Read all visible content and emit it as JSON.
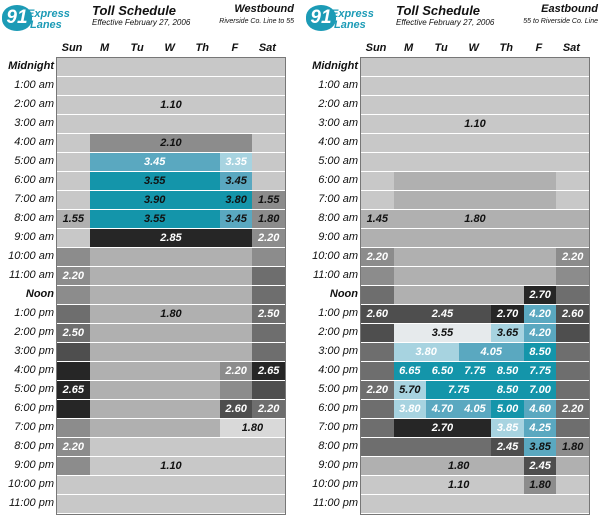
{
  "logo": {
    "badge": "91",
    "line1": "Express",
    "line2": "Lanes"
  },
  "days": [
    "Sun",
    "M",
    "Tu",
    "W",
    "Th",
    "F",
    "Sat"
  ],
  "hours": [
    "Midnight",
    "1:00 am",
    "2:00 am",
    "3:00 am",
    "4:00 am",
    "5:00 am",
    "6:00 am",
    "7:00 am",
    "8:00 am",
    "9:00 am",
    "10:00 am",
    "11:00 am",
    "Noon",
    "1:00 pm",
    "2:00 pm",
    "3:00 pm",
    "4:00 pm",
    "5:00 pm",
    "6:00 pm",
    "7:00 pm",
    "8:00 pm",
    "9:00 pm",
    "10:00 pm",
    "11:00 pm"
  ],
  "panels": [
    {
      "title": "Toll Schedule",
      "effective": "Effective February 27, 2006",
      "direction": "Westbound",
      "route": "Riverside Co. Line to 55",
      "rows": [
        [
          {
            "span": 7,
            "color": "#c8c8c8",
            "text": ""
          }
        ],
        [
          {
            "span": 7,
            "color": "#c8c8c8",
            "text": ""
          }
        ],
        [
          {
            "span": 7,
            "color": "#c8c8c8",
            "text": "1.10"
          }
        ],
        [
          {
            "span": 7,
            "color": "#c8c8c8",
            "text": ""
          }
        ],
        [
          {
            "span": 1,
            "color": "#c8c8c8",
            "text": ""
          },
          {
            "span": 5,
            "color": "#8c8c8c",
            "text": "2.10"
          },
          {
            "span": 1,
            "color": "#c8c8c8",
            "text": ""
          }
        ],
        [
          {
            "span": 1,
            "color": "#c8c8c8",
            "text": ""
          },
          {
            "span": 4,
            "color": "#5aa8c0",
            "text": "3.45",
            "light": true
          },
          {
            "span": 1,
            "color": "#a7d3e0",
            "text": "3.35",
            "light": true
          },
          {
            "span": 1,
            "color": "#c8c8c8",
            "text": ""
          }
        ],
        [
          {
            "span": 1,
            "color": "#c8c8c8",
            "text": ""
          },
          {
            "span": 4,
            "color": "#1495aa",
            "text": "3.55"
          },
          {
            "span": 1,
            "color": "#5aa8c0",
            "text": "3.45"
          },
          {
            "span": 1,
            "color": "#c8c8c8",
            "text": ""
          }
        ],
        [
          {
            "span": 1,
            "color": "#c8c8c8",
            "text": ""
          },
          {
            "span": 4,
            "color": "#1495aa",
            "text": "3.90"
          },
          {
            "span": 1,
            "color": "#1495aa",
            "text": "3.80"
          },
          {
            "span": 1,
            "color": "#8c8c8c",
            "text": "1.55"
          }
        ],
        [
          {
            "span": 1,
            "color": "#b0b0b0",
            "text": "1.55"
          },
          {
            "span": 4,
            "color": "#1495aa",
            "text": "3.55"
          },
          {
            "span": 1,
            "color": "#5aa8c0",
            "text": "3.45"
          },
          {
            "span": 1,
            "color": "#8c8c8c",
            "text": "1.80"
          }
        ],
        [
          {
            "span": 1,
            "color": "#c8c8c8",
            "text": ""
          },
          {
            "span": 5,
            "color": "#262626",
            "text": "2.85",
            "light": true
          },
          {
            "span": 1,
            "color": "#8c8c8c",
            "text": "2.20",
            "light": true
          }
        ],
        [
          {
            "span": 1,
            "color": "#8c8c8c",
            "text": ""
          },
          {
            "span": 5,
            "color": "#b0b0b0",
            "text": ""
          },
          {
            "span": 1,
            "color": "#8c8c8c",
            "text": ""
          }
        ],
        [
          {
            "span": 1,
            "color": "#8c8c8c",
            "text": "2.20",
            "light": true
          },
          {
            "span": 5,
            "color": "#b0b0b0",
            "text": ""
          },
          {
            "span": 1,
            "color": "#6e6e6e",
            "text": ""
          }
        ],
        [
          {
            "span": 1,
            "color": "#8c8c8c",
            "text": ""
          },
          {
            "span": 5,
            "color": "#b0b0b0",
            "text": ""
          },
          {
            "span": 1,
            "color": "#6e6e6e",
            "text": ""
          }
        ],
        [
          {
            "span": 1,
            "color": "#6e6e6e",
            "text": ""
          },
          {
            "span": 5,
            "color": "#b0b0b0",
            "text": "1.80"
          },
          {
            "span": 1,
            "color": "#6e6e6e",
            "text": "2.50",
            "light": true
          }
        ],
        [
          {
            "span": 1,
            "color": "#6e6e6e",
            "text": "2.50",
            "light": true
          },
          {
            "span": 5,
            "color": "#b0b0b0",
            "text": ""
          },
          {
            "span": 1,
            "color": "#6e6e6e",
            "text": ""
          }
        ],
        [
          {
            "span": 1,
            "color": "#4e4e4e",
            "text": ""
          },
          {
            "span": 5,
            "color": "#b0b0b0",
            "text": ""
          },
          {
            "span": 1,
            "color": "#6e6e6e",
            "text": ""
          }
        ],
        [
          {
            "span": 1,
            "color": "#262626",
            "text": ""
          },
          {
            "span": 4,
            "color": "#b0b0b0",
            "text": ""
          },
          {
            "span": 1,
            "color": "#8c8c8c",
            "text": "2.20",
            "light": true
          },
          {
            "span": 1,
            "color": "#262626",
            "text": "2.65",
            "light": true
          }
        ],
        [
          {
            "span": 1,
            "color": "#262626",
            "text": "2.65",
            "light": true
          },
          {
            "span": 4,
            "color": "#b0b0b0",
            "text": ""
          },
          {
            "span": 1,
            "color": "#8c8c8c",
            "text": ""
          },
          {
            "span": 1,
            "color": "#4e4e4e",
            "text": ""
          }
        ],
        [
          {
            "span": 1,
            "color": "#262626",
            "text": ""
          },
          {
            "span": 4,
            "color": "#b0b0b0",
            "text": ""
          },
          {
            "span": 1,
            "color": "#4e4e4e",
            "text": "2.60",
            "light": true
          },
          {
            "span": 1,
            "color": "#6e6e6e",
            "text": "2.20",
            "light": true
          }
        ],
        [
          {
            "span": 1,
            "color": "#8c8c8c",
            "text": ""
          },
          {
            "span": 4,
            "color": "#b0b0b0",
            "text": ""
          },
          {
            "span": 2,
            "color": "#d9d9d9",
            "text": "1.80"
          }
        ],
        [
          {
            "span": 1,
            "color": "#8c8c8c",
            "text": "2.20",
            "light": true
          },
          {
            "span": 6,
            "color": "#c8c8c8",
            "text": ""
          }
        ],
        [
          {
            "span": 1,
            "color": "#8c8c8c",
            "text": ""
          },
          {
            "span": 5,
            "color": "#c8c8c8",
            "text": "1.10"
          },
          {
            "span": 1,
            "color": "#c8c8c8",
            "text": ""
          }
        ],
        [
          {
            "span": 7,
            "color": "#c8c8c8",
            "text": ""
          }
        ],
        [
          {
            "span": 7,
            "color": "#c8c8c8",
            "text": ""
          }
        ]
      ]
    },
    {
      "title": "Toll Schedule",
      "effective": "Effective February 27, 2006",
      "direction": "Eastbound",
      "route": "55 to Riverside Co. Line",
      "rows": [
        [
          {
            "span": 7,
            "color": "#c8c8c8",
            "text": ""
          }
        ],
        [
          {
            "span": 7,
            "color": "#c8c8c8",
            "text": ""
          }
        ],
        [
          {
            "span": 7,
            "color": "#c8c8c8",
            "text": ""
          }
        ],
        [
          {
            "span": 7,
            "color": "#c8c8c8",
            "text": "1.10"
          }
        ],
        [
          {
            "span": 7,
            "color": "#c8c8c8",
            "text": ""
          }
        ],
        [
          {
            "span": 7,
            "color": "#c8c8c8",
            "text": ""
          }
        ],
        [
          {
            "span": 1,
            "color": "#c8c8c8",
            "text": ""
          },
          {
            "span": 5,
            "color": "#b0b0b0",
            "text": ""
          },
          {
            "span": 1,
            "color": "#c8c8c8",
            "text": ""
          }
        ],
        [
          {
            "span": 1,
            "color": "#c8c8c8",
            "text": ""
          },
          {
            "span": 5,
            "color": "#b0b0b0",
            "text": ""
          },
          {
            "span": 1,
            "color": "#c8c8c8",
            "text": ""
          }
        ],
        [
          {
            "span": 1,
            "color": "#b0b0b0",
            "text": "1.45"
          },
          {
            "span": 5,
            "color": "#b0b0b0",
            "text": "1.80"
          },
          {
            "span": 1,
            "color": "#b0b0b0",
            "text": ""
          }
        ],
        [
          {
            "span": 7,
            "color": "#b0b0b0",
            "text": ""
          }
        ],
        [
          {
            "span": 1,
            "color": "#8c8c8c",
            "text": "2.20",
            "light": true
          },
          {
            "span": 5,
            "color": "#b0b0b0",
            "text": ""
          },
          {
            "span": 1,
            "color": "#8c8c8c",
            "text": "2.20",
            "light": true
          }
        ],
        [
          {
            "span": 1,
            "color": "#8c8c8c",
            "text": ""
          },
          {
            "span": 5,
            "color": "#b0b0b0",
            "text": ""
          },
          {
            "span": 1,
            "color": "#8c8c8c",
            "text": ""
          }
        ],
        [
          {
            "span": 1,
            "color": "#6e6e6e",
            "text": ""
          },
          {
            "span": 4,
            "color": "#b0b0b0",
            "text": ""
          },
          {
            "span": 1,
            "color": "#262626",
            "text": "2.70",
            "light": true
          },
          {
            "span": 1,
            "color": "#6e6e6e",
            "text": ""
          }
        ],
        [
          {
            "span": 1,
            "color": "#4e4e4e",
            "text": "2.60",
            "light": true
          },
          {
            "span": 3,
            "color": "#4e4e4e",
            "text": "2.45",
            "light": true
          },
          {
            "span": 1,
            "color": "#262626",
            "text": "2.70",
            "light": true
          },
          {
            "span": 1,
            "color": "#5aa8c0",
            "text": "4.20",
            "light": true
          },
          {
            "span": 1,
            "color": "#4e4e4e",
            "text": "2.60",
            "light": true
          }
        ],
        [
          {
            "span": 1,
            "color": "#4e4e4e",
            "text": ""
          },
          {
            "span": 3,
            "color": "#e6eaec",
            "text": "3.55"
          },
          {
            "span": 1,
            "color": "#a7d3e0",
            "text": "3.65"
          },
          {
            "span": 1,
            "color": "#5aa8c0",
            "text": "4.20",
            "light": true
          },
          {
            "span": 1,
            "color": "#4e4e4e",
            "text": ""
          }
        ],
        [
          {
            "span": 1,
            "color": "#6e6e6e",
            "text": ""
          },
          {
            "span": 2,
            "color": "#a7d3e0",
            "text": "3.80",
            "light": true
          },
          {
            "span": 2,
            "color": "#5aa8c0",
            "text": "4.05",
            "light": true
          },
          {
            "span": 1,
            "color": "#1495aa",
            "text": "8.50",
            "light": true
          },
          {
            "span": 1,
            "color": "#6e6e6e",
            "text": ""
          }
        ],
        [
          {
            "span": 1,
            "color": "#6e6e6e",
            "text": ""
          },
          {
            "span": 1,
            "color": "#1495aa",
            "text": "6.65",
            "light": true
          },
          {
            "span": 1,
            "color": "#1495aa",
            "text": "6.50",
            "light": true
          },
          {
            "span": 1,
            "color": "#1495aa",
            "text": "7.75",
            "light": true
          },
          {
            "span": 1,
            "color": "#1495aa",
            "text": "8.50",
            "light": true
          },
          {
            "span": 1,
            "color": "#1495aa",
            "text": "7.75",
            "light": true
          },
          {
            "span": 1,
            "color": "#6e6e6e",
            "text": ""
          }
        ],
        [
          {
            "span": 1,
            "color": "#6e6e6e",
            "text": "2.20",
            "light": true
          },
          {
            "span": 1,
            "color": "#a7d3e0",
            "text": "5.70"
          },
          {
            "span": 2,
            "color": "#1495aa",
            "text": "7.75",
            "light": true
          },
          {
            "span": 1,
            "color": "#1495aa",
            "text": "8.50",
            "light": true
          },
          {
            "span": 1,
            "color": "#1495aa",
            "text": "7.00",
            "light": true
          },
          {
            "span": 1,
            "color": "#6e6e6e",
            "text": ""
          }
        ],
        [
          {
            "span": 1,
            "color": "#6e6e6e",
            "text": ""
          },
          {
            "span": 1,
            "color": "#a7d3e0",
            "text": "3.80",
            "light": true
          },
          {
            "span": 1,
            "color": "#5aa8c0",
            "text": "4.70",
            "light": true
          },
          {
            "span": 1,
            "color": "#5aa8c0",
            "text": "4.05",
            "light": true
          },
          {
            "span": 1,
            "color": "#1495aa",
            "text": "5.00",
            "light": true
          },
          {
            "span": 1,
            "color": "#5aa8c0",
            "text": "4.60",
            "light": true
          },
          {
            "span": 1,
            "color": "#6e6e6e",
            "text": "2.20",
            "light": true
          }
        ],
        [
          {
            "span": 1,
            "color": "#6e6e6e",
            "text": ""
          },
          {
            "span": 3,
            "color": "#262626",
            "text": "2.70",
            "light": true
          },
          {
            "span": 1,
            "color": "#a7d3e0",
            "text": "3.85",
            "light": true
          },
          {
            "span": 1,
            "color": "#5aa8c0",
            "text": "4.25",
            "light": true
          },
          {
            "span": 1,
            "color": "#6e6e6e",
            "text": ""
          }
        ],
        [
          {
            "span": 1,
            "color": "#6e6e6e",
            "text": ""
          },
          {
            "span": 3,
            "color": "#6e6e6e",
            "text": ""
          },
          {
            "span": 1,
            "color": "#4e4e4e",
            "text": "2.45",
            "light": true
          },
          {
            "span": 1,
            "color": "#5aa8c0",
            "text": "3.85"
          },
          {
            "span": 1,
            "color": "#8c8c8c",
            "text": "1.80"
          }
        ],
        [
          {
            "span": 1,
            "color": "#b0b0b0",
            "text": ""
          },
          {
            "span": 4,
            "color": "#b0b0b0",
            "text": "1.80"
          },
          {
            "span": 1,
            "color": "#4e4e4e",
            "text": "2.45",
            "light": true
          },
          {
            "span": 1,
            "color": "#b0b0b0",
            "text": ""
          }
        ],
        [
          {
            "span": 1,
            "color": "#c8c8c8",
            "text": ""
          },
          {
            "span": 4,
            "color": "#c8c8c8",
            "text": "1.10"
          },
          {
            "span": 1,
            "color": "#8c8c8c",
            "text": "1.80"
          },
          {
            "span": 1,
            "color": "#c8c8c8",
            "text": ""
          }
        ],
        [
          {
            "span": 7,
            "color": "#c8c8c8",
            "text": ""
          }
        ]
      ]
    }
  ]
}
